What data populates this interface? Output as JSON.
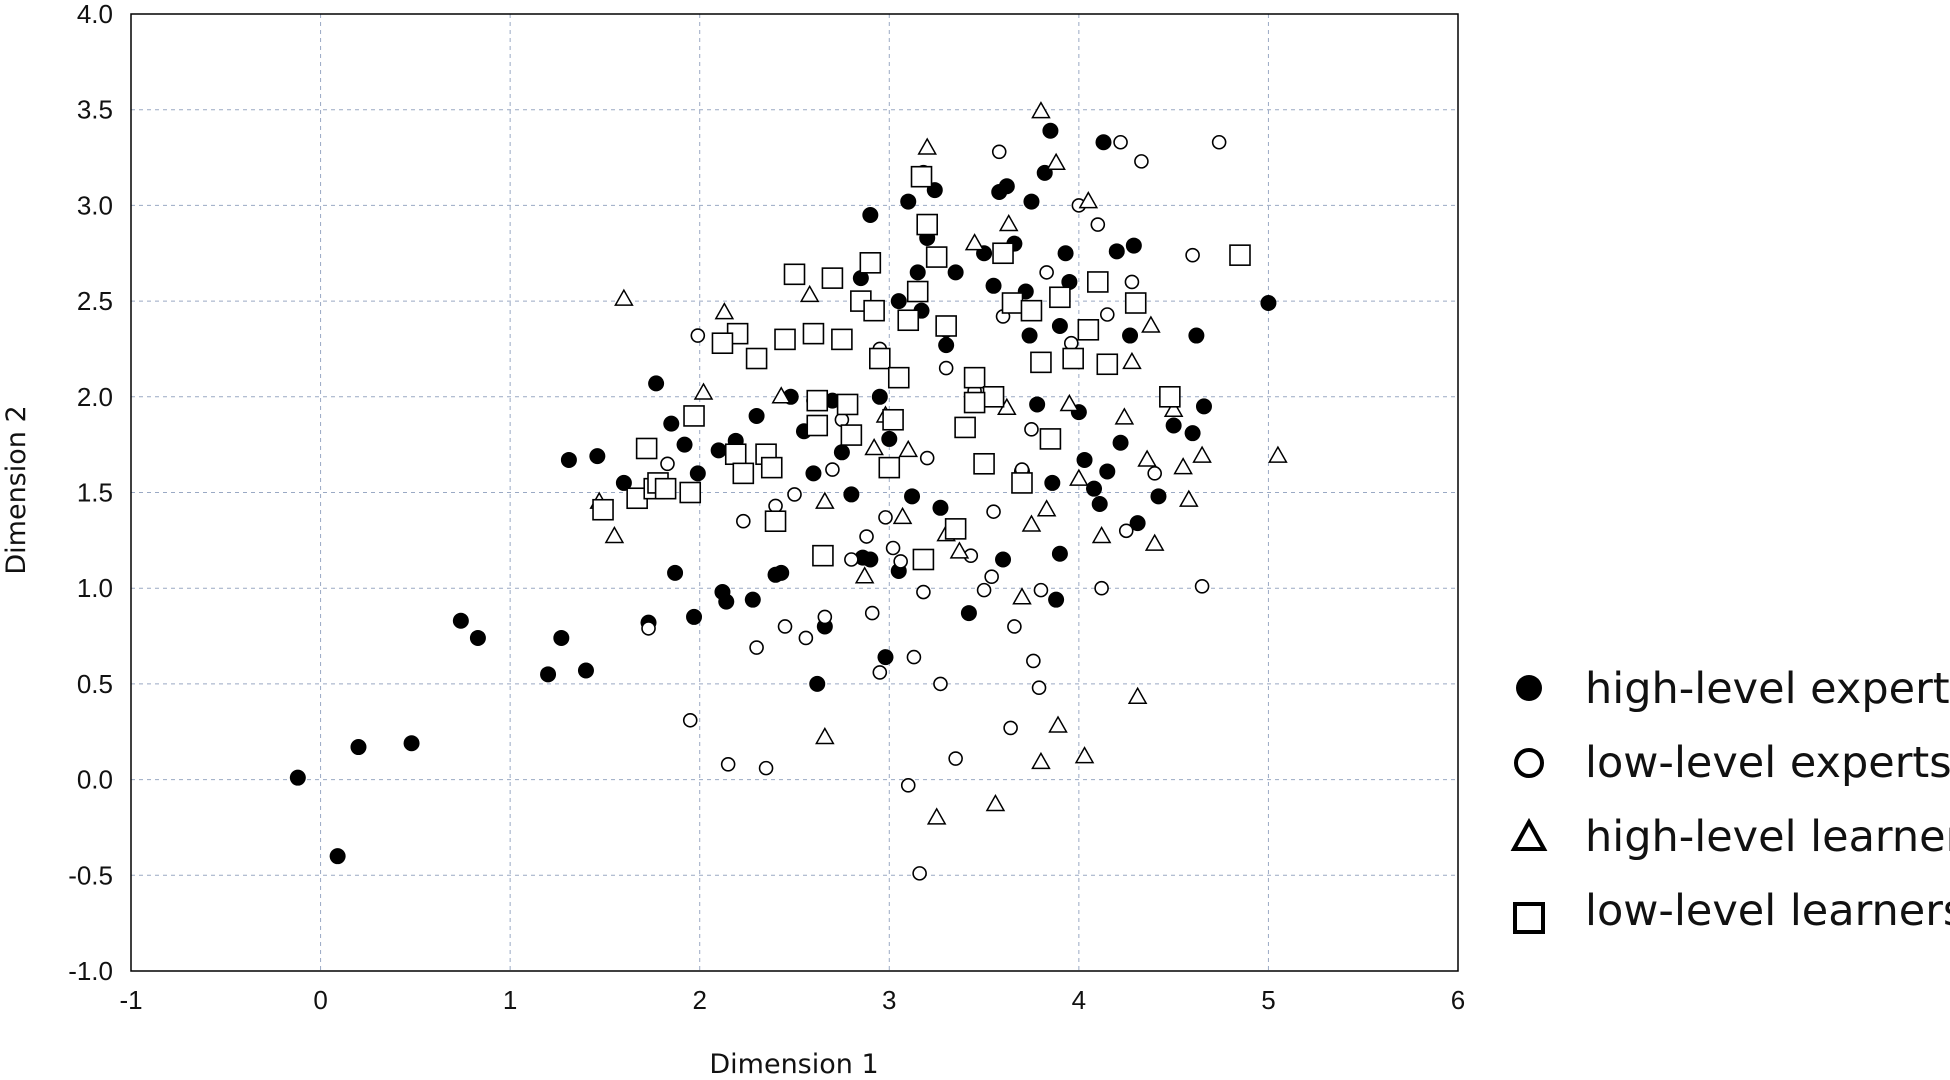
{
  "chart_data": {
    "type": "scatter",
    "title": "",
    "xlabel": "Dimension 1",
    "ylabel": "Dimension 2",
    "xlim": [
      -1,
      6
    ],
    "ylim": [
      -1.0,
      4.0
    ],
    "xticks": [
      -1,
      0,
      1,
      2,
      3,
      4,
      5,
      6
    ],
    "xtick_labels": [
      "-1",
      "0",
      "1",
      "2",
      "3",
      "4",
      "5",
      "6"
    ],
    "yticks": [
      -1.0,
      -0.5,
      0.0,
      0.5,
      1.0,
      1.5,
      2.0,
      2.5,
      3.0,
      3.5,
      4.0
    ],
    "ytick_labels": [
      "-1.0",
      "-0.5",
      "0.0",
      "0.5",
      "1.0",
      "1.5",
      "2.0",
      "2.5",
      "3.0",
      "3.5",
      "4.0"
    ],
    "grid": true,
    "legend_position": "outside-right-bottom",
    "series": [
      {
        "name": "high-level experts",
        "marker": "filled-circle",
        "color": "#000000",
        "points": [
          [
            -0.12,
            0.01
          ],
          [
            0.09,
            -0.4
          ],
          [
            0.2,
            0.17
          ],
          [
            0.48,
            0.19
          ],
          [
            0.74,
            0.83
          ],
          [
            0.83,
            0.74
          ],
          [
            1.2,
            0.55
          ],
          [
            1.27,
            0.74
          ],
          [
            1.4,
            0.57
          ],
          [
            1.31,
            1.67
          ],
          [
            1.46,
            1.69
          ],
          [
            1.6,
            1.55
          ],
          [
            1.73,
            0.82
          ],
          [
            1.77,
            2.07
          ],
          [
            1.85,
            1.86
          ],
          [
            1.87,
            1.08
          ],
          [
            1.92,
            1.75
          ],
          [
            1.97,
            0.85
          ],
          [
            1.99,
            1.6
          ],
          [
            2.1,
            1.72
          ],
          [
            2.12,
            0.98
          ],
          [
            2.14,
            0.93
          ],
          [
            2.19,
            1.77
          ],
          [
            2.28,
            0.94
          ],
          [
            2.3,
            1.9
          ],
          [
            2.4,
            1.07
          ],
          [
            2.43,
            1.08
          ],
          [
            2.48,
            2.0
          ],
          [
            2.55,
            1.82
          ],
          [
            2.6,
            1.6
          ],
          [
            2.62,
            0.5
          ],
          [
            2.66,
            0.8
          ],
          [
            2.7,
            1.98
          ],
          [
            2.75,
            1.71
          ],
          [
            2.8,
            1.49
          ],
          [
            2.86,
            1.16
          ],
          [
            2.9,
            1.15
          ],
          [
            2.95,
            2.0
          ],
          [
            2.98,
            0.64
          ],
          [
            3.0,
            1.78
          ],
          [
            3.05,
            1.09
          ],
          [
            3.1,
            3.02
          ],
          [
            3.12,
            1.48
          ],
          [
            3.15,
            2.65
          ],
          [
            3.17,
            2.45
          ],
          [
            3.18,
            3.17
          ],
          [
            3.24,
            3.08
          ],
          [
            3.27,
            1.42
          ],
          [
            3.3,
            2.35
          ],
          [
            3.35,
            2.65
          ],
          [
            3.42,
            0.87
          ],
          [
            3.45,
            1.98
          ],
          [
            3.5,
            2.75
          ],
          [
            3.55,
            2.58
          ],
          [
            3.6,
            1.15
          ],
          [
            3.62,
            3.1
          ],
          [
            3.66,
            2.8
          ],
          [
            3.7,
            1.61
          ],
          [
            3.74,
            2.32
          ],
          [
            3.75,
            3.02
          ],
          [
            3.78,
            1.96
          ],
          [
            3.82,
            3.17
          ],
          [
            3.85,
            3.39
          ],
          [
            3.86,
            1.55
          ],
          [
            3.88,
            0.94
          ],
          [
            3.9,
            1.18
          ],
          [
            3.93,
            2.75
          ],
          [
            3.95,
            2.6
          ],
          [
            4.0,
            1.92
          ],
          [
            4.03,
            1.67
          ],
          [
            4.08,
            1.52
          ],
          [
            4.11,
            1.44
          ],
          [
            4.13,
            3.33
          ],
          [
            4.15,
            1.61
          ],
          [
            4.2,
            2.76
          ],
          [
            4.22,
            1.76
          ],
          [
            4.27,
            2.32
          ],
          [
            4.29,
            2.79
          ],
          [
            4.31,
            1.34
          ],
          [
            4.42,
            1.48
          ],
          [
            4.5,
            1.85
          ],
          [
            4.6,
            1.81
          ],
          [
            4.62,
            2.32
          ],
          [
            4.66,
            1.95
          ],
          [
            5.0,
            2.49
          ],
          [
            3.3,
            2.27
          ],
          [
            3.05,
            2.5
          ],
          [
            2.9,
            2.95
          ],
          [
            3.58,
            3.07
          ],
          [
            3.2,
            2.83
          ],
          [
            2.85,
            2.62
          ],
          [
            3.4,
            1.83
          ],
          [
            3.9,
            2.37
          ],
          [
            3.72,
            2.55
          ]
        ]
      },
      {
        "name": "low-level experts",
        "marker": "open-circle",
        "color": "#000000",
        "points": [
          [
            1.73,
            0.79
          ],
          [
            1.83,
            1.65
          ],
          [
            1.95,
            0.31
          ],
          [
            1.99,
            2.32
          ],
          [
            2.15,
            0.08
          ],
          [
            2.23,
            1.35
          ],
          [
            2.3,
            0.69
          ],
          [
            2.35,
            0.06
          ],
          [
            2.4,
            1.43
          ],
          [
            2.45,
            0.8
          ],
          [
            2.5,
            1.49
          ],
          [
            2.56,
            0.74
          ],
          [
            2.66,
            0.85
          ],
          [
            2.7,
            1.62
          ],
          [
            2.75,
            1.88
          ],
          [
            2.8,
            1.15
          ],
          [
            2.88,
            1.27
          ],
          [
            2.91,
            0.87
          ],
          [
            2.95,
            0.56
          ],
          [
            2.98,
            1.37
          ],
          [
            3.02,
            1.21
          ],
          [
            3.06,
            1.14
          ],
          [
            3.1,
            -0.03
          ],
          [
            3.13,
            0.64
          ],
          [
            3.16,
            -0.49
          ],
          [
            3.18,
            0.98
          ],
          [
            3.27,
            0.5
          ],
          [
            3.35,
            0.11
          ],
          [
            3.43,
            1.17
          ],
          [
            3.5,
            0.99
          ],
          [
            3.54,
            1.06
          ],
          [
            3.58,
            3.28
          ],
          [
            3.64,
            0.27
          ],
          [
            3.66,
            0.8
          ],
          [
            3.7,
            1.62
          ],
          [
            3.76,
            0.62
          ],
          [
            3.79,
            0.48
          ],
          [
            3.8,
            0.99
          ],
          [
            3.83,
            2.65
          ],
          [
            3.96,
            2.28
          ],
          [
            4.0,
            3.0
          ],
          [
            4.1,
            2.9
          ],
          [
            4.12,
            1.0
          ],
          [
            4.22,
            3.33
          ],
          [
            4.25,
            1.3
          ],
          [
            4.28,
            2.6
          ],
          [
            4.33,
            3.23
          ],
          [
            4.4,
            1.6
          ],
          [
            4.6,
            2.74
          ],
          [
            4.65,
            1.01
          ],
          [
            4.74,
            3.33
          ],
          [
            2.6,
            1.98
          ],
          [
            3.3,
            2.15
          ],
          [
            3.45,
            2.03
          ],
          [
            3.6,
            2.42
          ],
          [
            2.95,
            2.25
          ],
          [
            3.2,
            1.68
          ],
          [
            3.75,
            1.83
          ],
          [
            4.15,
            2.43
          ],
          [
            3.55,
            1.4
          ]
        ]
      },
      {
        "name": "high-level learners",
        "marker": "open-triangle",
        "color": "#000000",
        "points": [
          [
            1.47,
            1.45
          ],
          [
            1.55,
            1.27
          ],
          [
            1.6,
            2.51
          ],
          [
            2.02,
            2.02
          ],
          [
            2.13,
            2.44
          ],
          [
            2.43,
            2.0
          ],
          [
            2.58,
            2.53
          ],
          [
            2.66,
            1.45
          ],
          [
            2.66,
            0.22
          ],
          [
            2.87,
            1.06
          ],
          [
            2.92,
            1.73
          ],
          [
            2.98,
            1.9
          ],
          [
            3.07,
            1.37
          ],
          [
            3.2,
            3.3
          ],
          [
            3.25,
            -0.2
          ],
          [
            3.3,
            1.28
          ],
          [
            3.37,
            1.19
          ],
          [
            3.45,
            2.8
          ],
          [
            3.56,
            -0.13
          ],
          [
            3.63,
            2.9
          ],
          [
            3.7,
            0.95
          ],
          [
            3.75,
            1.33
          ],
          [
            3.8,
            3.49
          ],
          [
            3.8,
            0.09
          ],
          [
            3.88,
            3.22
          ],
          [
            3.89,
            0.28
          ],
          [
            4.0,
            1.57
          ],
          [
            4.03,
            0.12
          ],
          [
            4.05,
            3.02
          ],
          [
            4.12,
            1.27
          ],
          [
            4.24,
            1.89
          ],
          [
            4.28,
            2.18
          ],
          [
            4.31,
            0.43
          ],
          [
            4.36,
            1.67
          ],
          [
            4.4,
            1.23
          ],
          [
            4.5,
            1.93
          ],
          [
            4.55,
            1.63
          ],
          [
            4.58,
            1.46
          ],
          [
            4.65,
            1.69
          ],
          [
            5.05,
            1.69
          ],
          [
            4.38,
            2.37
          ],
          [
            3.95,
            1.96
          ],
          [
            3.62,
            1.94
          ],
          [
            3.1,
            1.72
          ],
          [
            3.83,
            1.41
          ]
        ]
      },
      {
        "name": "low-level learners",
        "marker": "open-square",
        "color": "#000000",
        "points": [
          [
            1.49,
            1.41
          ],
          [
            1.67,
            1.47
          ],
          [
            1.72,
            1.73
          ],
          [
            1.76,
            1.52
          ],
          [
            1.78,
            1.55
          ],
          [
            1.95,
            1.5
          ],
          [
            1.97,
            1.9
          ],
          [
            2.19,
            1.7
          ],
          [
            2.2,
            2.33
          ],
          [
            2.23,
            1.6
          ],
          [
            2.3,
            2.2
          ],
          [
            2.35,
            1.7
          ],
          [
            2.4,
            1.35
          ],
          [
            2.45,
            2.3
          ],
          [
            2.5,
            2.64
          ],
          [
            2.6,
            2.33
          ],
          [
            2.62,
            1.98
          ],
          [
            2.65,
            1.17
          ],
          [
            2.7,
            2.62
          ],
          [
            2.75,
            2.3
          ],
          [
            2.8,
            1.8
          ],
          [
            2.85,
            2.5
          ],
          [
            2.9,
            2.7
          ],
          [
            2.95,
            2.2
          ],
          [
            3.0,
            1.63
          ],
          [
            3.05,
            2.1
          ],
          [
            3.1,
            2.4
          ],
          [
            3.15,
            2.55
          ],
          [
            3.18,
            1.15
          ],
          [
            3.2,
            2.9
          ],
          [
            3.25,
            2.73
          ],
          [
            3.3,
            2.37
          ],
          [
            3.35,
            1.31
          ],
          [
            3.4,
            1.84
          ],
          [
            3.45,
            2.1
          ],
          [
            3.5,
            1.65
          ],
          [
            3.55,
            2.0
          ],
          [
            3.6,
            2.75
          ],
          [
            3.65,
            2.49
          ],
          [
            3.7,
            1.55
          ],
          [
            3.75,
            2.45
          ],
          [
            3.8,
            2.18
          ],
          [
            3.85,
            1.78
          ],
          [
            3.9,
            2.52
          ],
          [
            3.97,
            2.2
          ],
          [
            4.05,
            2.35
          ],
          [
            4.1,
            2.6
          ],
          [
            4.15,
            2.17
          ],
          [
            4.3,
            2.49
          ],
          [
            4.48,
            2.0
          ],
          [
            4.85,
            2.74
          ],
          [
            3.17,
            3.15
          ],
          [
            2.62,
            1.85
          ],
          [
            2.78,
            1.96
          ],
          [
            3.02,
            1.88
          ],
          [
            2.38,
            1.63
          ],
          [
            1.82,
            1.52
          ],
          [
            2.12,
            2.28
          ],
          [
            3.45,
            1.97
          ],
          [
            2.92,
            2.45
          ]
        ]
      }
    ]
  }
}
